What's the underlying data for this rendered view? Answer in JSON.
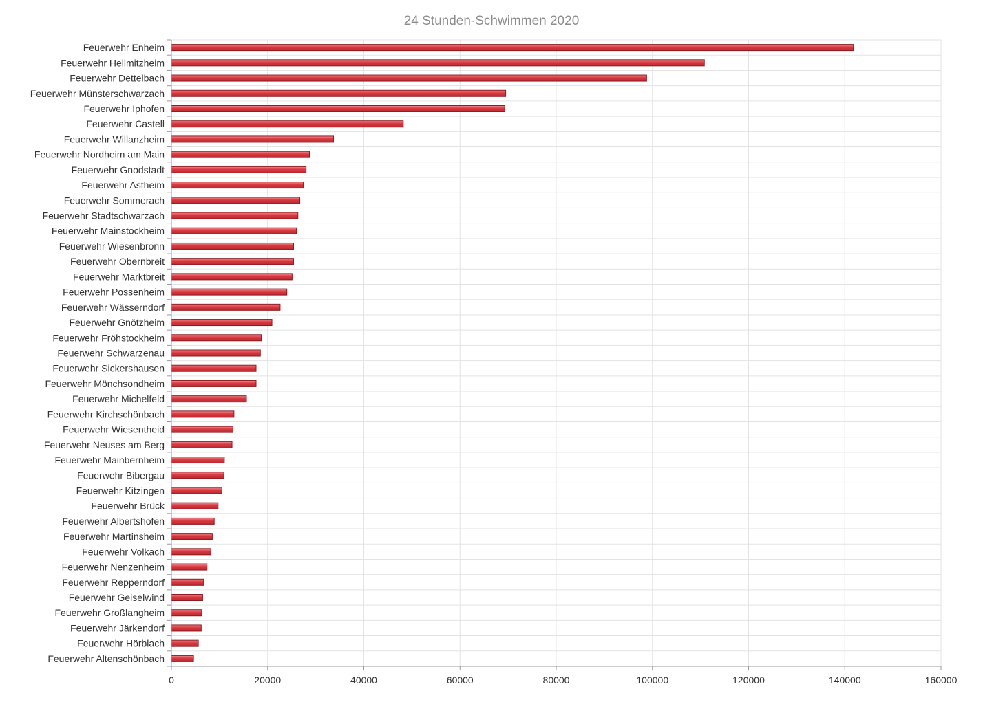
{
  "chart_data": {
    "type": "bar",
    "orientation": "horizontal",
    "title": "24 Stunden-Schwimmen 2020",
    "xlabel": "",
    "ylabel": "",
    "xlim": [
      0,
      160000
    ],
    "x_ticks": [
      "0",
      "20000",
      "40000",
      "60000",
      "80000",
      "100000",
      "120000",
      "140000",
      "160000"
    ],
    "grid": true,
    "bar_color": "#d9383f",
    "categories": [
      "Feuerwehr Enheim",
      "Feuerwehr Hellmitzheim",
      "Feuerwehr Dettelbach",
      "Feuerwehr Münsterschwarzach",
      "Feuerwehr Iphofen",
      "Feuerwehr Castell",
      "Feuerwehr Willanzheim",
      "Feuerwehr Nordheim am Main",
      "Feuerwehr Gnodstadt",
      "Feuerwehr Astheim",
      "Feuerwehr Sommerach",
      "Feuerwehr Stadtschwarzach",
      "Feuerwehr Mainstockheim",
      "Feuerwehr Wiesenbronn",
      "Feuerwehr Obernbreit",
      "Feuerwehr Marktbreit",
      "Feuerwehr Possenheim",
      "Feuerwehr Wässerndorf",
      "Feuerwehr Gnötzheim",
      "Feuerwehr Fröhstockheim",
      "Feuerwehr Schwarzenau",
      "Feuerwehr Sickershausen",
      "Feuerwehr Mönchsondheim",
      "Feuerwehr Michelfeld",
      "Feuerwehr Kirchschönbach",
      "Feuerwehr Wiesentheid",
      "Feuerwehr Neuses am Berg",
      "Feuerwehr Mainbernheim",
      "Feuerwehr Bibergau",
      "Feuerwehr Kitzingen",
      "Feuerwehr Brück",
      "Feuerwehr Albertshofen",
      "Feuerwehr Martinsheim",
      "Feuerwehr Volkach",
      "Feuerwehr Nenzenheim",
      "Feuerwehr Repperndorf",
      "Feuerwehr Geiselwind",
      "Feuerwehr Großlangheim",
      "Feuerwehr Järkendorf",
      "Feuerwehr Hörblach",
      "Feuerwehr Altenschönbach"
    ],
    "values": [
      141800,
      110800,
      98800,
      69500,
      69300,
      48200,
      33700,
      28700,
      28000,
      27400,
      26700,
      26300,
      26000,
      25400,
      25400,
      25100,
      24000,
      22600,
      20900,
      18700,
      18500,
      17600,
      17600,
      15600,
      13000,
      12800,
      12600,
      11000,
      10900,
      10500,
      9700,
      8900,
      8500,
      8200,
      7400,
      6700,
      6500,
      6300,
      6200,
      5600,
      4600
    ]
  }
}
